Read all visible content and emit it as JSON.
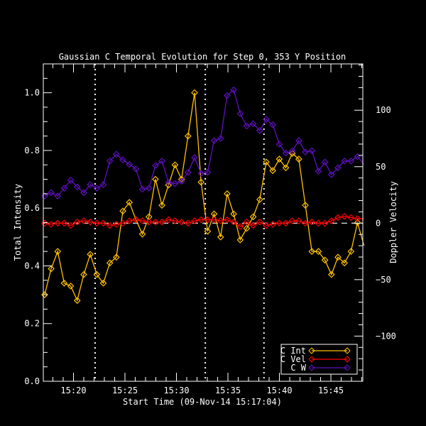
{
  "chart_data": {
    "type": "line",
    "title": "Gaussian C Temporal Evolution for Step 0, 353 Y Position",
    "xlabel": "Start Time (09-Nov-14 15:17:04)",
    "ylabel": "Total Intensity",
    "ylabel_right": "Doppler Velocity",
    "x_unit": "minutes after 15:00",
    "xlim": [
      17.07,
      48.1
    ],
    "ylim": [
      0.0,
      1.1
    ],
    "ylim_right": [
      -140,
      141
    ],
    "x_ticks": [
      {
        "value": 20,
        "label": "15:20"
      },
      {
        "value": 25,
        "label": "15:25"
      },
      {
        "value": 30,
        "label": "15:30"
      },
      {
        "value": 35,
        "label": "15:35"
      },
      {
        "value": 40,
        "label": "15:40"
      },
      {
        "value": 45,
        "label": "15:45"
      }
    ],
    "y_ticks": [
      {
        "value": 0.0,
        "label": "0.0"
      },
      {
        "value": 0.2,
        "label": "0.2"
      },
      {
        "value": 0.4,
        "label": "0.4"
      },
      {
        "value": 0.6,
        "label": "0.6"
      },
      {
        "value": 0.8,
        "label": "0.8"
      },
      {
        "value": 1.0,
        "label": "1.0"
      }
    ],
    "y_right_ticks": [
      {
        "value": -100,
        "label": "−100"
      },
      {
        "value": -50,
        "label": "−50"
      },
      {
        "value": 0,
        "label": "0"
      },
      {
        "value": 50,
        "label": "50"
      },
      {
        "value": 100,
        "label": "100"
      }
    ],
    "vertical_markers": [
      22.1,
      32.8,
      38.5
    ],
    "zero_line_right": 0,
    "x_start": 17.2,
    "x_step": 0.633,
    "series": [
      {
        "name": "C Int",
        "axis": "left",
        "color": "#ffc000",
        "values": [
          0.3,
          0.39,
          0.45,
          0.34,
          0.33,
          0.28,
          0.37,
          0.44,
          0.37,
          0.34,
          0.41,
          0.43,
          0.59,
          0.62,
          0.56,
          0.51,
          0.57,
          0.7,
          0.61,
          0.68,
          0.75,
          0.7,
          0.85,
          1.0,
          0.69,
          0.52,
          0.58,
          0.5,
          0.65,
          0.58,
          0.49,
          0.53,
          0.57,
          0.63,
          0.76,
          0.73,
          0.77,
          0.74,
          0.79,
          0.77,
          0.61,
          0.45,
          0.45,
          0.42,
          0.37,
          0.43,
          0.41,
          0.45,
          0.55,
          0.47
        ]
      },
      {
        "name": "C Vel",
        "axis": "right",
        "color": "#ff0000",
        "values": [
          0,
          -1,
          0,
          0,
          -2,
          1,
          2,
          1,
          0,
          0,
          -2,
          -1,
          0,
          2,
          3,
          2,
          1,
          1,
          1,
          3,
          2,
          1,
          0,
          2,
          3,
          3,
          3,
          2,
          3,
          1,
          -3,
          1,
          -2,
          1,
          -2,
          -1,
          0,
          0,
          2,
          2,
          0,
          1,
          0,
          0,
          2,
          5,
          6,
          5,
          4,
          4
        ]
      },
      {
        "name": "C W",
        "axis": "right",
        "color": "#6010c0",
        "values": [
          24,
          27,
          24,
          31,
          38,
          32,
          27,
          34,
          31,
          34,
          55,
          61,
          56,
          52,
          48,
          30,
          31,
          51,
          55,
          36,
          35,
          37,
          45,
          58,
          44,
          45,
          73,
          75,
          113,
          118,
          97,
          86,
          88,
          82,
          92,
          87,
          70,
          62,
          64,
          73,
          63,
          64,
          46,
          54,
          43,
          49,
          55,
          55,
          59,
          52
        ]
      }
    ],
    "legend": {
      "placement": "bottom-right",
      "entries": [
        "C Int",
        "C Vel",
        "C W"
      ]
    }
  }
}
